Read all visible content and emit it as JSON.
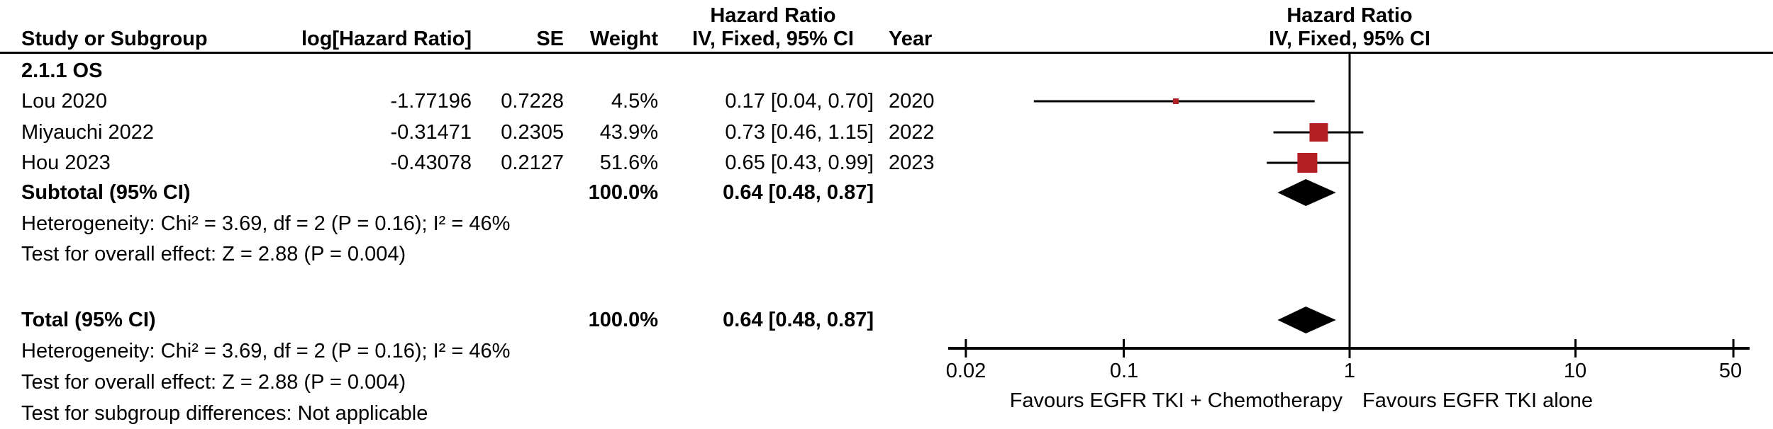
{
  "header": {
    "hazard_ratio_title_left": "Hazard Ratio",
    "hazard_ratio_title_right": "Hazard Ratio",
    "col_study": "Study or Subgroup",
    "col_loghr": "log[Hazard Ratio]",
    "col_se": "SE",
    "col_weight": "Weight",
    "col_iv_left": "IV, Fixed, 95% CI",
    "col_year": "Year",
    "col_iv_right": "IV, Fixed, 95% CI"
  },
  "subgroup": {
    "label": "2.1.1 OS",
    "subtotal_label": "Subtotal (95% CI)",
    "subtotal_weight": "100.0%",
    "subtotal_ci": "0.64 [0.48, 0.87]",
    "heterogeneity": "Heterogeneity: Chi² = 3.69, df = 2 (P = 0.16); I² = 46%",
    "overall_effect": "Test for overall effect: Z = 2.88 (P = 0.004)"
  },
  "table_rows": [
    {
      "study": "Lou 2020",
      "loghr": "-1.77196",
      "se": "0.7228",
      "weight": "4.5%",
      "ci": "0.17 [0.04, 0.70]",
      "year": "2020"
    },
    {
      "study": "Miyauchi 2022",
      "loghr": "-0.31471",
      "se": "0.2305",
      "weight": "43.9%",
      "ci": "0.73 [0.46, 1.15]",
      "year": "2022"
    },
    {
      "study": "Hou 2023",
      "loghr": "-0.43078",
      "se": "0.2127",
      "weight": "51.6%",
      "ci": "0.65 [0.43, 0.99]",
      "year": "2023"
    }
  ],
  "total": {
    "label": "Total (95% CI)",
    "weight": "100.0%",
    "ci": "0.64 [0.48, 0.87]",
    "heterogeneity": "Heterogeneity: Chi² = 3.69, df = 2 (P = 0.16); I² = 46%",
    "overall_effect": "Test for overall effect: Z = 2.88 (P = 0.004)",
    "subgroup_diff": "Test for subgroup differences: Not applicable"
  },
  "axis": {
    "tick_labels": [
      "0.02",
      "0.1",
      "1",
      "10",
      "50"
    ],
    "favours_left": "Favours EGFR TKI + Chemotherapy",
    "favours_right": "Favours EGFR TKI alone"
  },
  "chart_data": {
    "type": "scatter",
    "variant": "forest-plot",
    "title": "Hazard Ratio",
    "effect_model": "IV, Fixed, 95% CI",
    "x_axis": {
      "scale": "log",
      "min": 0.02,
      "max": 50,
      "ticks": [
        0.02,
        0.1,
        1,
        10,
        50
      ],
      "no_effect_line": 1
    },
    "studies": [
      {
        "name": "Lou 2020",
        "log_hr": -1.77196,
        "se": 0.7228,
        "weight_pct": 4.5,
        "hr": 0.17,
        "ci_low": 0.04,
        "ci_high": 0.7,
        "year": 2020
      },
      {
        "name": "Miyauchi 2022",
        "log_hr": -0.31471,
        "se": 0.2305,
        "weight_pct": 43.9,
        "hr": 0.73,
        "ci_low": 0.46,
        "ci_high": 1.15,
        "year": 2022
      },
      {
        "name": "Hou 2023",
        "log_hr": -0.43078,
        "se": 0.2127,
        "weight_pct": 51.6,
        "hr": 0.65,
        "ci_low": 0.43,
        "ci_high": 0.99,
        "year": 2023
      }
    ],
    "subtotal": {
      "label": "Subtotal (95% CI)",
      "weight_pct": 100.0,
      "hr": 0.64,
      "ci_low": 0.48,
      "ci_high": 0.87,
      "heterogeneity": {
        "chi2": 3.69,
        "df": 2,
        "p": 0.16,
        "i2_pct": 46
      },
      "overall_effect": {
        "z": 2.88,
        "p": 0.004
      }
    },
    "total": {
      "label": "Total (95% CI)",
      "weight_pct": 100.0,
      "hr": 0.64,
      "ci_low": 0.48,
      "ci_high": 0.87,
      "heterogeneity": {
        "chi2": 3.69,
        "df": 2,
        "p": 0.16,
        "i2_pct": 46
      },
      "overall_effect": {
        "z": 2.88,
        "p": 0.004
      }
    },
    "marker_color": "#b21f24",
    "line_color": "#000000",
    "legend_position": "none",
    "grid": false
  }
}
